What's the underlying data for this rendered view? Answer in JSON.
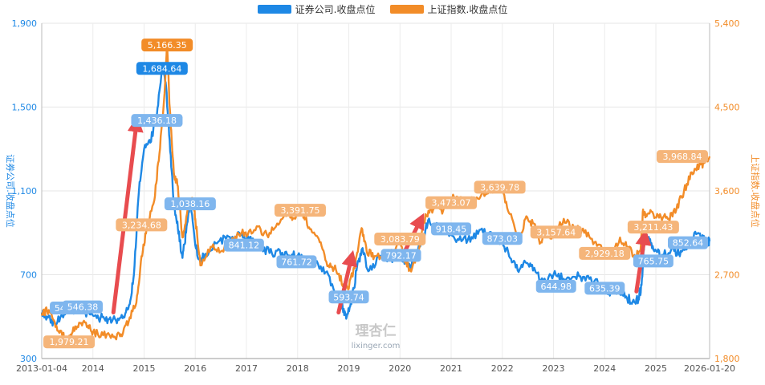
{
  "legend": [
    {
      "name": "证券公司.收盘点位",
      "color": "#1e88e5"
    },
    {
      "name": "上证指数.收盘点位",
      "color": "#f28c28"
    }
  ],
  "watermark": {
    "cn": "理杏仁",
    "url": "lixinger.com"
  },
  "chart_data": {
    "type": "line",
    "x_range": [
      "2013-01-04",
      "2026-01-20"
    ],
    "x_ticks": [
      "2013-01-04",
      "2014",
      "2015",
      "2016",
      "2017",
      "2018",
      "2019",
      "2020",
      "2021",
      "2022",
      "2023",
      "2024",
      "2025",
      "2026-01-20"
    ],
    "y_left": {
      "label": "证券公司.收盘点位",
      "ticks": [
        "300",
        "700",
        "1,100",
        "1,500",
        "1,900"
      ],
      "range": [
        300,
        1900
      ],
      "color": "#1e88e5"
    },
    "y_right": {
      "label": "上证指数.收盘点位",
      "ticks": [
        "1,800",
        "2,700",
        "3,600",
        "4,500",
        "5,400"
      ],
      "range": [
        1800,
        5400
      ],
      "color": "#f28c28"
    },
    "grid": true,
    "legend_position": "top-center",
    "series": [
      {
        "name": "证券公司.收盘点位",
        "axis": "left",
        "color": "#1e88e5",
        "points": [
          [
            2013.0,
            520
          ],
          [
            2013.1,
            500
          ],
          [
            2013.25,
            470
          ],
          [
            2013.4,
            505
          ],
          [
            2013.55,
            520
          ],
          [
            2013.7,
            545
          ],
          [
            2013.85,
            520
          ],
          [
            2014.0,
            505
          ],
          [
            2014.15,
            495
          ],
          [
            2014.3,
            488
          ],
          [
            2014.45,
            482
          ],
          [
            2014.6,
            500
          ],
          [
            2014.72,
            560
          ],
          [
            2014.8,
            700
          ],
          [
            2014.9,
            1100
          ],
          [
            2015.0,
            1300
          ],
          [
            2015.12,
            1330
          ],
          [
            2015.25,
            1460
          ],
          [
            2015.35,
            1685
          ],
          [
            2015.42,
            1620
          ],
          [
            2015.5,
            1340
          ],
          [
            2015.58,
            1050
          ],
          [
            2015.66,
            920
          ],
          [
            2015.75,
            780
          ],
          [
            2015.82,
            900
          ],
          [
            2015.9,
            1060
          ],
          [
            2016.0,
            840
          ],
          [
            2016.1,
            760
          ],
          [
            2016.2,
            800
          ],
          [
            2016.4,
            850
          ],
          [
            2016.6,
            870
          ],
          [
            2016.8,
            880
          ],
          [
            2016.95,
            890
          ],
          [
            2017.1,
            860
          ],
          [
            2017.3,
            830
          ],
          [
            2017.5,
            800
          ],
          [
            2017.7,
            805
          ],
          [
            2017.85,
            790
          ],
          [
            2018.0,
            790
          ],
          [
            2018.2,
            760
          ],
          [
            2018.4,
            750
          ],
          [
            2018.6,
            700
          ],
          [
            2018.8,
            580
          ],
          [
            2018.88,
            545
          ],
          [
            2018.96,
            500
          ],
          [
            2019.05,
            560
          ],
          [
            2019.15,
            720
          ],
          [
            2019.25,
            820
          ],
          [
            2019.4,
            720
          ],
          [
            2019.6,
            790
          ],
          [
            2019.8,
            770
          ],
          [
            2020.0,
            800
          ],
          [
            2020.1,
            760
          ],
          [
            2020.2,
            740
          ],
          [
            2020.3,
            790
          ],
          [
            2020.45,
            870
          ],
          [
            2020.55,
            960
          ],
          [
            2020.7,
            930
          ],
          [
            2020.85,
            920
          ],
          [
            2021.0,
            890
          ],
          [
            2021.2,
            860
          ],
          [
            2021.4,
            880
          ],
          [
            2021.6,
            920
          ],
          [
            2021.8,
            880
          ],
          [
            2022.0,
            860
          ],
          [
            2022.15,
            780
          ],
          [
            2022.3,
            720
          ],
          [
            2022.45,
            760
          ],
          [
            2022.6,
            720
          ],
          [
            2022.8,
            670
          ],
          [
            2023.0,
            700
          ],
          [
            2023.2,
            680
          ],
          [
            2023.4,
            690
          ],
          [
            2023.6,
            690
          ],
          [
            2023.8,
            670
          ],
          [
            2024.0,
            630
          ],
          [
            2024.1,
            600
          ],
          [
            2024.25,
            630
          ],
          [
            2024.4,
            590
          ],
          [
            2024.55,
            575
          ],
          [
            2024.66,
            580
          ],
          [
            2024.72,
            650
          ],
          [
            2024.78,
            880
          ],
          [
            2024.85,
            870
          ],
          [
            2024.95,
            820
          ],
          [
            2025.1,
            790
          ],
          [
            2025.3,
            820
          ],
          [
            2025.45,
            800
          ],
          [
            2025.6,
            820
          ],
          [
            2025.75,
            900
          ],
          [
            2025.9,
            880
          ],
          [
            2026.0,
            850
          ],
          [
            2026.05,
            860
          ]
        ],
        "labels": [
          {
            "x": 2013.55,
            "y": 541.33,
            "text": "541.33"
          },
          {
            "x": 2013.8,
            "y": 546.38,
            "text": "546.38"
          },
          {
            "x": 2015.25,
            "y": 1436.18,
            "text": "1,436.18"
          },
          {
            "x": 2015.35,
            "y": 1684.64,
            "text": "1,684.64"
          },
          {
            "x": 2015.9,
            "y": 1038.16,
            "text": "1,038.16"
          },
          {
            "x": 2016.95,
            "y": 841.12,
            "text": "841.12"
          },
          {
            "x": 2017.98,
            "y": 761.72,
            "text": "761.72"
          },
          {
            "x": 2019.0,
            "y": 593.74,
            "text": "593.74"
          },
          {
            "x": 2020.02,
            "y": 792.17,
            "text": "792.17"
          },
          {
            "x": 2021.0,
            "y": 918.45,
            "text": "918.45"
          },
          {
            "x": 2022.0,
            "y": 873.03,
            "text": "873.03"
          },
          {
            "x": 2023.05,
            "y": 644.98,
            "text": "644.98"
          },
          {
            "x": 2024.0,
            "y": 635.39,
            "text": "635.39"
          },
          {
            "x": 2024.95,
            "y": 765.75,
            "text": "765.75"
          },
          {
            "x": 2025.85,
            "y": 852.64,
            "text": "852.64"
          }
        ]
      },
      {
        "name": "上证指数.收盘点位",
        "axis": "right",
        "color": "#f28c28",
        "points": [
          [
            2013.0,
            2260
          ],
          [
            2013.1,
            2320
          ],
          [
            2013.25,
            2200
          ],
          [
            2013.4,
            2050
          ],
          [
            2013.5,
            1990
          ],
          [
            2013.6,
            2080
          ],
          [
            2013.75,
            2180
          ],
          [
            2013.9,
            2150
          ],
          [
            2014.0,
            2080
          ],
          [
            2014.2,
            2050
          ],
          [
            2014.4,
            2030
          ],
          [
            2014.55,
            2060
          ],
          [
            2014.7,
            2200
          ],
          [
            2014.85,
            2400
          ],
          [
            2014.95,
            2900
          ],
          [
            2015.05,
            3200
          ],
          [
            2015.2,
            3500
          ],
          [
            2015.3,
            4000
          ],
          [
            2015.4,
            4650
          ],
          [
            2015.45,
            5160
          ],
          [
            2015.5,
            4500
          ],
          [
            2015.58,
            3800
          ],
          [
            2015.66,
            3650
          ],
          [
            2015.75,
            3100
          ],
          [
            2015.85,
            3400
          ],
          [
            2015.95,
            3500
          ],
          [
            2016.0,
            3300
          ],
          [
            2016.1,
            2800
          ],
          [
            2016.3,
            3000
          ],
          [
            2016.5,
            2950
          ],
          [
            2016.7,
            3050
          ],
          [
            2016.9,
            3150
          ],
          [
            2017.0,
            3110
          ],
          [
            2017.2,
            3220
          ],
          [
            2017.4,
            3130
          ],
          [
            2017.6,
            3250
          ],
          [
            2017.8,
            3380
          ],
          [
            2017.95,
            3300
          ],
          [
            2018.05,
            3450
          ],
          [
            2018.15,
            3300
          ],
          [
            2018.3,
            3150
          ],
          [
            2018.45,
            3050
          ],
          [
            2018.6,
            2800
          ],
          [
            2018.75,
            2750
          ],
          [
            2018.9,
            2600
          ],
          [
            2019.0,
            2550
          ],
          [
            2019.15,
            2900
          ],
          [
            2019.25,
            3200
          ],
          [
            2019.35,
            2950
          ],
          [
            2019.5,
            2900
          ],
          [
            2019.7,
            2920
          ],
          [
            2019.85,
            2950
          ],
          [
            2020.0,
            3050
          ],
          [
            2020.1,
            2850
          ],
          [
            2020.2,
            2760
          ],
          [
            2020.35,
            2900
          ],
          [
            2020.5,
            3350
          ],
          [
            2020.65,
            3400
          ],
          [
            2020.85,
            3400
          ],
          [
            2021.0,
            3520
          ],
          [
            2021.15,
            3500
          ],
          [
            2021.3,
            3460
          ],
          [
            2021.5,
            3530
          ],
          [
            2021.7,
            3570
          ],
          [
            2021.85,
            3630
          ],
          [
            2022.0,
            3600
          ],
          [
            2022.15,
            3350
          ],
          [
            2022.3,
            3050
          ],
          [
            2022.45,
            3300
          ],
          [
            2022.6,
            3250
          ],
          [
            2022.75,
            3050
          ],
          [
            2022.9,
            3150
          ],
          [
            2023.0,
            3100
          ],
          [
            2023.2,
            3300
          ],
          [
            2023.4,
            3200
          ],
          [
            2023.6,
            3150
          ],
          [
            2023.8,
            3050
          ],
          [
            2024.0,
            2950
          ],
          [
            2024.1,
            2900
          ],
          [
            2024.3,
            3100
          ],
          [
            2024.45,
            3000
          ],
          [
            2024.6,
            2900
          ],
          [
            2024.7,
            2950
          ],
          [
            2024.75,
            3400
          ],
          [
            2024.8,
            3350
          ],
          [
            2024.95,
            3350
          ],
          [
            2025.1,
            3320
          ],
          [
            2025.25,
            3300
          ],
          [
            2025.4,
            3400
          ],
          [
            2025.55,
            3600
          ],
          [
            2025.7,
            3800
          ],
          [
            2025.85,
            3880
          ],
          [
            2025.95,
            3900
          ],
          [
            2026.05,
            3970
          ]
        ],
        "labels": [
          {
            "x": 2013.5,
            "y": 1979.21,
            "text": "1,979.21"
          },
          {
            "x": 2014.95,
            "y": 3234.68,
            "text": "3,234.68"
          },
          {
            "x": 2015.45,
            "y": 5166.35,
            "text": "5,166.35"
          },
          {
            "x": 2018.05,
            "y": 3391.75,
            "text": "3,391.75"
          },
          {
            "x": 2020.0,
            "y": 3083.79,
            "text": "3,083.79"
          },
          {
            "x": 2021.0,
            "y": 3473.07,
            "text": "3,473.07"
          },
          {
            "x": 2021.95,
            "y": 3639.78,
            "text": "3,639.78"
          },
          {
            "x": 2023.05,
            "y": 3157.64,
            "text": "3,157.64"
          },
          {
            "x": 2024.0,
            "y": 2929.18,
            "text": "2,929.18"
          },
          {
            "x": 2024.95,
            "y": 3211.43,
            "text": "3,211.43"
          },
          {
            "x": 2025.9,
            "y": 3968.84,
            "text": "3,968.84"
          }
        ]
      }
    ],
    "annotations": [
      {
        "type": "arrow",
        "from": [
          2014.4,
          520
        ],
        "to": [
          2014.85,
          1420
        ],
        "axis": "left",
        "color": "#e84c4f"
      },
      {
        "type": "arrow",
        "from": [
          2018.8,
          520
        ],
        "to": [
          2019.05,
          780
        ],
        "axis": "left",
        "color": "#e84c4f"
      },
      {
        "type": "arrow",
        "from": [
          2020.05,
          790
        ],
        "to": [
          2020.4,
          960
        ],
        "axis": "left",
        "color": "#e84c4f"
      },
      {
        "type": "arrow",
        "from": [
          2024.62,
          620
        ],
        "to": [
          2024.78,
          880
        ],
        "axis": "left",
        "color": "#e84c4f"
      }
    ]
  }
}
